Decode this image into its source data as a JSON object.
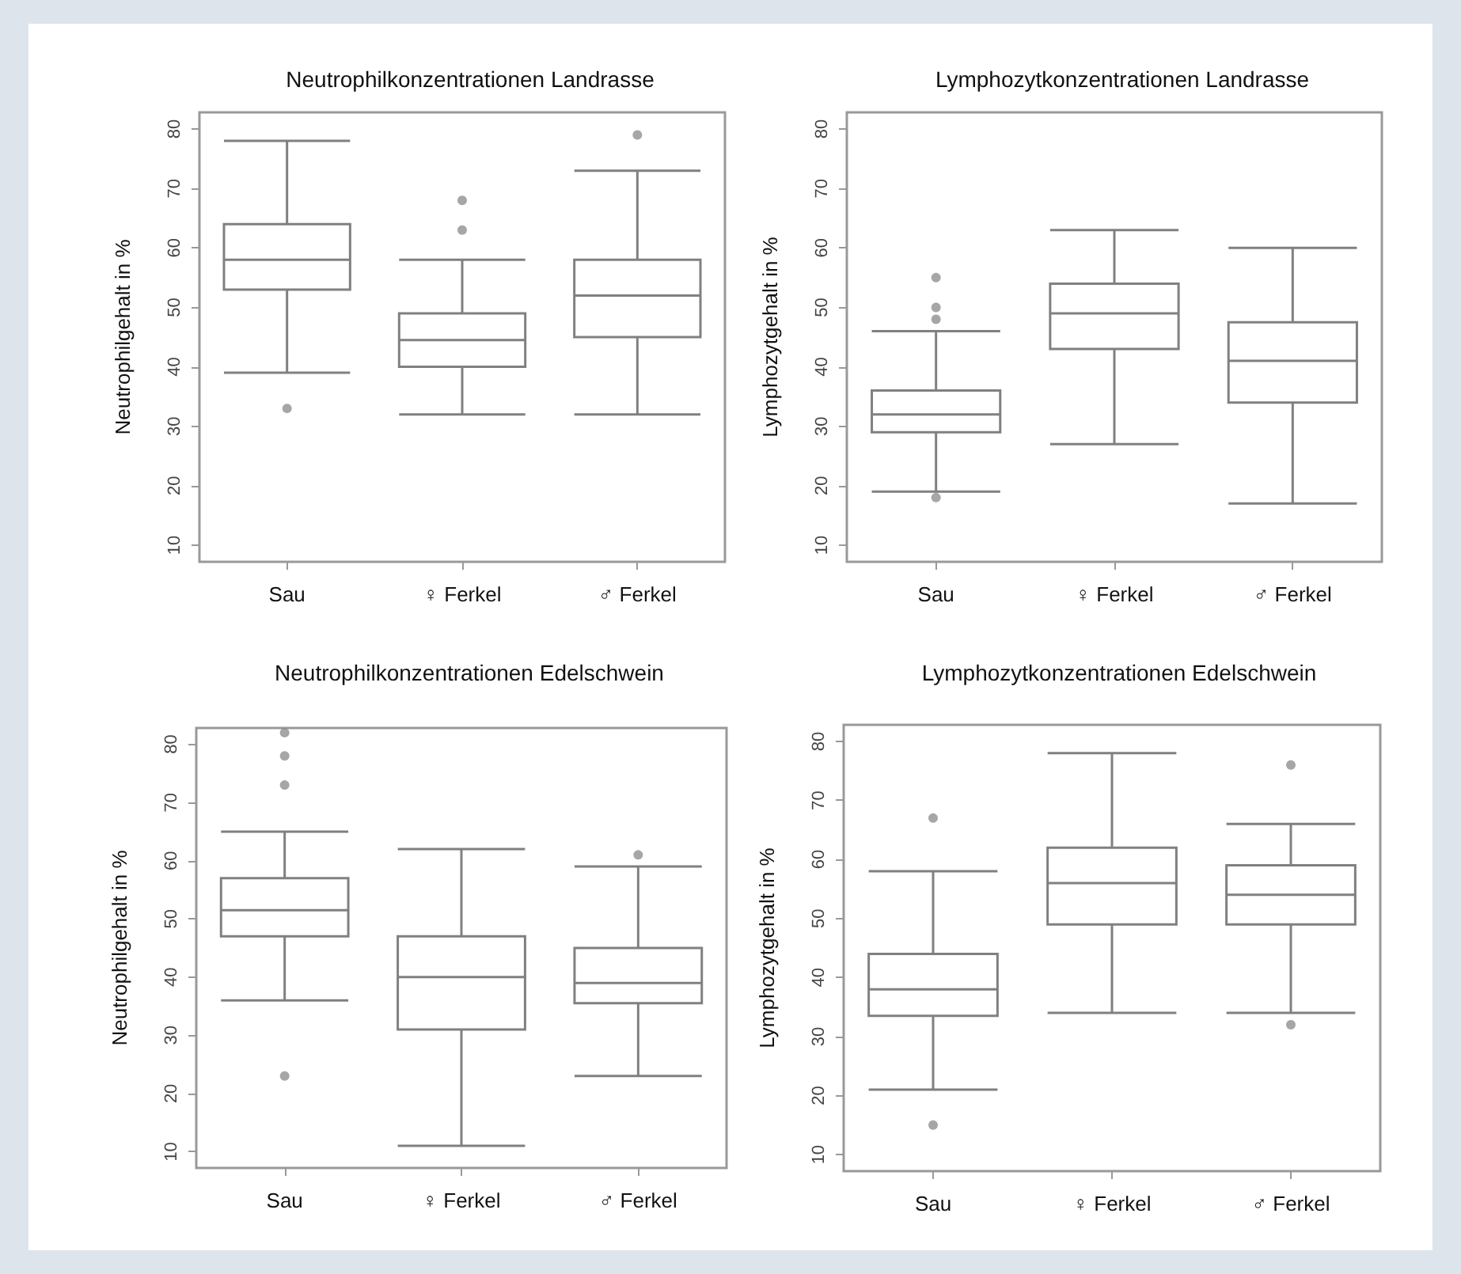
{
  "chart_data": [
    {
      "type": "box",
      "title": "Neutrophilkonzentrationen Landrasse",
      "ylabel": "Neutrophilgehalt in %",
      "categories": [
        "Sau",
        "♀ Ferkel",
        "♂ Ferkel"
      ],
      "color": "#808080",
      "ylim": [
        7.2,
        82.8
      ],
      "yticks": [
        10,
        20,
        30,
        40,
        50,
        60,
        70,
        80
      ],
      "boxes": [
        {
          "low": 39,
          "q1": 53,
          "median": 58,
          "q3": 64,
          "high": 78,
          "outliers": [
            33
          ]
        },
        {
          "low": 32,
          "q1": 40,
          "median": 44.5,
          "q3": 49,
          "high": 58,
          "outliers": [
            63,
            68
          ]
        },
        {
          "low": 32,
          "q1": 45,
          "median": 52,
          "q3": 58,
          "high": 73,
          "outliers": [
            79
          ]
        }
      ]
    },
    {
      "type": "box",
      "title": "Lymphozytkonzentrationen Landrasse",
      "ylabel": "Lymphozytgehalt in %",
      "categories": [
        "Sau",
        "♀ Ferkel",
        "♂ Ferkel"
      ],
      "color": "#808080",
      "ylim": [
        7.2,
        82.8
      ],
      "yticks": [
        10,
        20,
        30,
        40,
        50,
        60,
        70,
        80
      ],
      "boxes": [
        {
          "low": 19,
          "q1": 29,
          "median": 32,
          "q3": 36,
          "high": 46,
          "outliers": [
            18,
            48,
            50,
            55
          ]
        },
        {
          "low": 27,
          "q1": 43,
          "median": 49,
          "q3": 54,
          "high": 63
        },
        {
          "low": 17,
          "q1": 34,
          "median": 41,
          "q3": 47.5,
          "high": 60
        }
      ]
    },
    {
      "type": "box",
      "title": "Neutrophilkonzentrationen Edelschwein",
      "ylabel": "Neutrophilgehalt in %",
      "categories": [
        "Sau",
        "♀ Ferkel",
        "♂ Ferkel"
      ],
      "color": "#808080",
      "ylim": [
        7.2,
        82.8
      ],
      "yticks": [
        10,
        20,
        30,
        40,
        50,
        60,
        70,
        80
      ],
      "boxes": [
        {
          "low": 36,
          "q1": 47,
          "median": 51.5,
          "q3": 57,
          "high": 65,
          "outliers": [
            23,
            73,
            78,
            82
          ]
        },
        {
          "low": 11,
          "q1": 31,
          "median": 40,
          "q3": 47,
          "high": 62
        },
        {
          "low": 23,
          "q1": 35.5,
          "median": 39,
          "q3": 45,
          "high": 59,
          "outliers": [
            61
          ]
        }
      ]
    },
    {
      "type": "box",
      "title": "Lymphozytkonzentrationen Edelschwein",
      "ylabel": "Lymphozytgehalt in %",
      "categories": [
        "Sau",
        "♀ Ferkel",
        "♂ Ferkel"
      ],
      "color": "#808080",
      "ylim": [
        7.2,
        82.8
      ],
      "yticks": [
        10,
        20,
        30,
        40,
        50,
        60,
        70,
        80
      ],
      "boxes": [
        {
          "low": 21,
          "q1": 33.5,
          "median": 38,
          "q3": 44,
          "high": 58,
          "outliers": [
            15,
            67
          ]
        },
        {
          "low": 34,
          "q1": 49,
          "median": 56,
          "q3": 62,
          "high": 78
        },
        {
          "low": 34,
          "q1": 49,
          "median": 54,
          "q3": 59,
          "high": 66,
          "outliers": [
            32,
            76
          ]
        }
      ]
    }
  ]
}
